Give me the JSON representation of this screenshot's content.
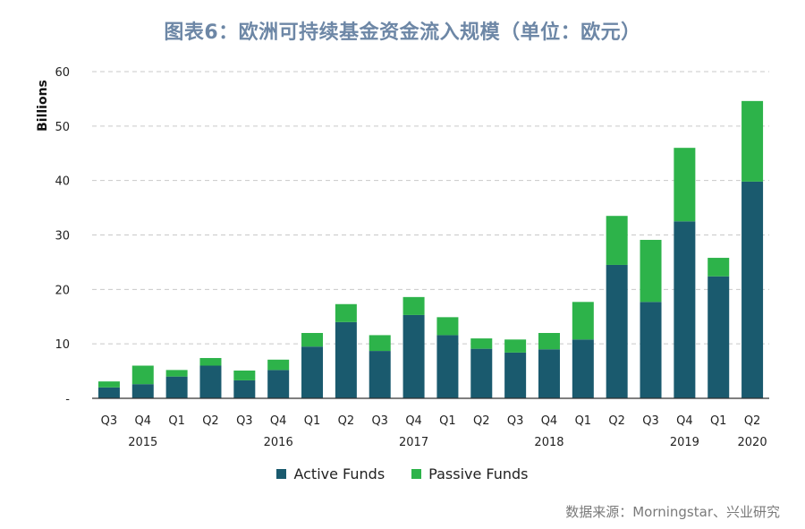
{
  "title": "图表6：欧洲可持续基金资金流入规模（单位：欧元）",
  "source": "数据来源：Morningstar、兴业研究",
  "colors": {
    "active": "#1a5a6e",
    "passive": "#2db34a",
    "grid": "#c9c9c9",
    "axis": "#333333"
  },
  "chart_data": {
    "type": "bar",
    "stacked": true,
    "ylabel": "Billions",
    "ylim": [
      0,
      60
    ],
    "yticks": [
      "-",
      "10",
      "20",
      "30",
      "40",
      "50",
      "60"
    ],
    "grid": true,
    "legend_position": "bottom",
    "categories": [
      "Q3",
      "Q4",
      "Q1",
      "Q2",
      "Q3",
      "Q4",
      "Q1",
      "Q2",
      "Q3",
      "Q4",
      "Q1",
      "Q2",
      "Q3",
      "Q4",
      "Q1",
      "Q2",
      "Q3",
      "Q4",
      "Q1",
      "Q2"
    ],
    "year_labels": [
      {
        "index": 1,
        "label": "2015"
      },
      {
        "index": 5,
        "label": "2016"
      },
      {
        "index": 9,
        "label": "2017"
      },
      {
        "index": 13,
        "label": "2018"
      },
      {
        "index": 17,
        "label": "2019"
      },
      {
        "index": 19,
        "label": "2020"
      }
    ],
    "series": [
      {
        "name": "Active Funds",
        "color_key": "active",
        "values": [
          2.0,
          2.6,
          4.0,
          6.0,
          3.3,
          5.2,
          9.5,
          14.0,
          8.7,
          15.3,
          11.6,
          9.1,
          8.4,
          9.0,
          10.8,
          24.5,
          17.7,
          32.5,
          22.4,
          39.8
        ]
      },
      {
        "name": "Passive Funds",
        "color_key": "passive",
        "values": [
          1.1,
          3.4,
          1.2,
          1.4,
          1.8,
          1.9,
          2.5,
          3.3,
          2.9,
          3.3,
          3.3,
          1.9,
          2.4,
          3.0,
          6.9,
          9.0,
          11.4,
          13.5,
          3.4,
          14.8
        ]
      }
    ]
  }
}
